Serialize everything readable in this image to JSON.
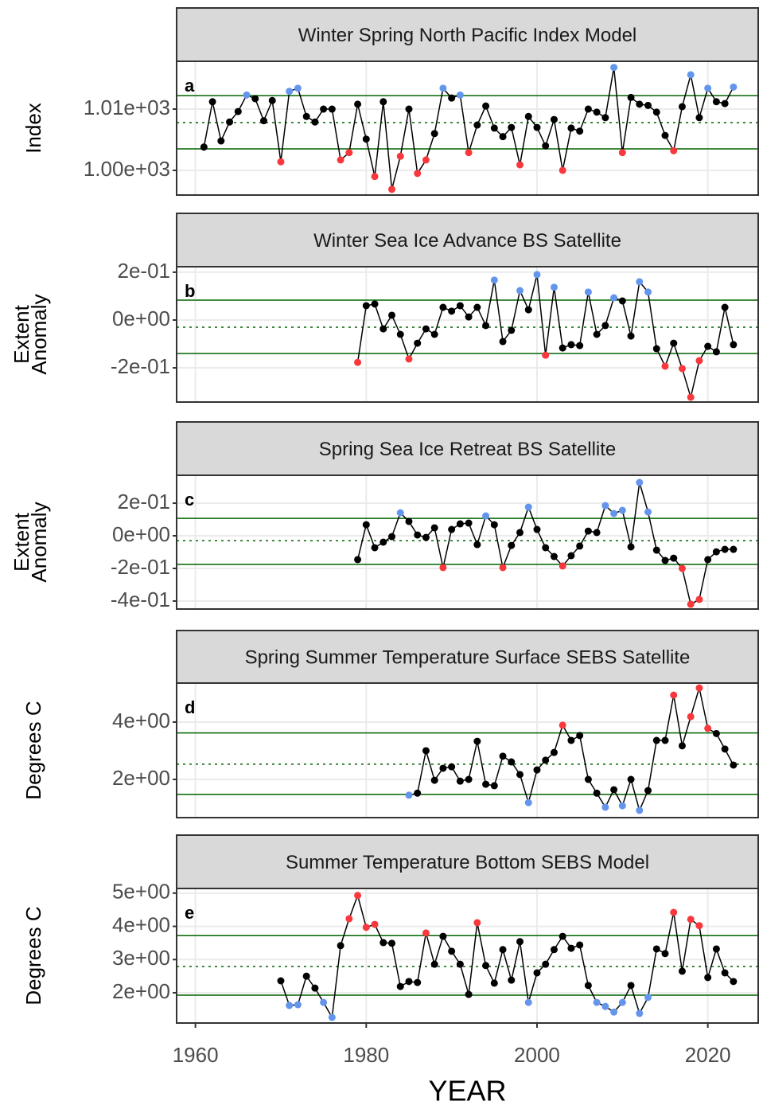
{
  "chart_data": [
    {
      "type": "line",
      "title": "Winter Spring North Pacific Index Model",
      "panel": "a",
      "ylabel": [
        "Index"
      ],
      "xlim": [
        1957.8,
        2025.9
      ],
      "xticks": [
        1960,
        1980,
        2000,
        2020
      ],
      "ylim": [
        995.97,
        1017.8
      ],
      "yticks": [
        {
          "value": 1000,
          "label": "1.00e+03"
        },
        {
          "value": 1010,
          "label": "1.01e+03"
        }
      ],
      "upper": 1012.2,
      "lower": 1003.5,
      "mean": 1007.8,
      "high_color": "#6495ed",
      "low_color": "#f8383c",
      "grid": true,
      "x": [
        1961,
        1962,
        1963,
        1964,
        1965,
        1966,
        1967,
        1968,
        1969,
        1970,
        1971,
        1972,
        1973,
        1974,
        1975,
        1976,
        1977,
        1978,
        1979,
        1980,
        1981,
        1982,
        1983,
        1984,
        1985,
        1986,
        1987,
        1988,
        1989,
        1990,
        1991,
        1992,
        1993,
        1994,
        1995,
        1996,
        1997,
        1998,
        1999,
        2000,
        2001,
        2002,
        2003,
        2004,
        2005,
        2006,
        2007,
        2008,
        2009,
        2010,
        2011,
        2012,
        2013,
        2014,
        2015,
        2016,
        2017,
        2018,
        2019,
        2020,
        2021,
        2022,
        2023
      ],
      "series": [
        {
          "color": "#000000",
          "values": [
            1003.8,
            1011.2,
            1004.8,
            1007.9,
            1009.6,
            1012.3,
            1011.7,
            1008.1,
            1011.4,
            1001.4,
            1012.9,
            1013.4,
            1008.8,
            1007.9,
            1010,
            1010,
            1001.7,
            1002.9,
            1010.8,
            1005.1,
            999,
            1011.2,
            996.9,
            1002.3,
            1010,
            999.5,
            1001.7,
            1006,
            1013.4,
            1011.8,
            1012.3,
            1002.9,
            1007.4,
            1010.5,
            1006.9,
            1005.5,
            1007,
            1000.9,
            1008.8,
            1007,
            1004,
            1008.3,
            1000,
            1006.9,
            1006.4,
            1010,
            1009.5,
            1008.6,
            1016.8,
            1002.9,
            1011.9,
            1010.8,
            1010.6,
            1009.5,
            1005.7,
            1003.2,
            1010.4,
            1015.6,
            1008.6,
            1013.4,
            1011.2,
            1010.9,
            1013.6
          ]
        }
      ]
    },
    {
      "type": "line",
      "title": "Winter Sea Ice Advance BS Satellite",
      "panel": "b",
      "ylabel": [
        "Extent",
        "Anomaly"
      ],
      "xlim": [
        1957.8,
        2025.9
      ],
      "xticks": [
        1960,
        1980,
        2000,
        2020
      ],
      "ylim": [
        -0.343,
        0.223
      ],
      "yticks": [
        {
          "value": -0.2,
          "label": "-2e-01"
        },
        {
          "value": 0,
          "label": "0e+00"
        },
        {
          "value": 0.2,
          "label": "2e-01"
        }
      ],
      "upper": 0.083,
      "lower": -0.14,
      "mean": -0.03,
      "high_color": "#6495ed",
      "low_color": "#f8383c",
      "grid": true,
      "x": [
        1979,
        1980,
        1981,
        1982,
        1983,
        1984,
        1985,
        1986,
        1987,
        1988,
        1989,
        1990,
        1991,
        1992,
        1993,
        1994,
        1995,
        1996,
        1997,
        1998,
        1999,
        2000,
        2001,
        2002,
        2003,
        2004,
        2005,
        2006,
        2007,
        2008,
        2009,
        2010,
        2011,
        2012,
        2013,
        2014,
        2015,
        2016,
        2017,
        2018,
        2019,
        2020,
        2021,
        2022,
        2023
      ],
      "series": [
        {
          "color": "#000000",
          "values": [
            -0.177,
            0.06,
            0.067,
            -0.037,
            0.02,
            -0.06,
            -0.163,
            -0.097,
            -0.037,
            -0.06,
            0.053,
            0.037,
            0.06,
            0.013,
            0.053,
            -0.023,
            0.167,
            -0.09,
            -0.043,
            0.123,
            0.043,
            0.19,
            -0.147,
            0.137,
            -0.117,
            -0.103,
            -0.107,
            0.117,
            -0.06,
            -0.023,
            0.093,
            0.08,
            -0.067,
            0.16,
            0.117,
            -0.12,
            -0.193,
            -0.097,
            -0.203,
            -0.323,
            -0.17,
            -0.11,
            -0.133,
            0.053,
            -0.103
          ]
        }
      ]
    },
    {
      "type": "line",
      "title": "Spring Sea Ice Retreat BS Satellite",
      "panel": "c",
      "ylabel": [
        "Extent",
        "Anomaly"
      ],
      "xlim": [
        1957.8,
        2025.9
      ],
      "xticks": [
        1960,
        1980,
        2000,
        2020
      ],
      "ylim": [
        -0.449,
        0.371
      ],
      "yticks": [
        {
          "value": -0.4,
          "label": "-4e-01"
        },
        {
          "value": -0.2,
          "label": "-2e-01"
        },
        {
          "value": 0,
          "label": "0e+00"
        },
        {
          "value": 0.2,
          "label": "2e-01"
        }
      ],
      "upper": 0.107,
      "lower": -0.175,
      "mean": -0.03,
      "high_color": "#6495ed",
      "low_color": "#f8383c",
      "grid": true,
      "x": [
        1979,
        1980,
        1981,
        1982,
        1983,
        1984,
        1985,
        1986,
        1987,
        1988,
        1989,
        1990,
        1991,
        1992,
        1993,
        1994,
        1995,
        1996,
        1997,
        1998,
        1999,
        2000,
        2001,
        2002,
        2003,
        2004,
        2005,
        2006,
        2007,
        2008,
        2009,
        2010,
        2011,
        2012,
        2013,
        2014,
        2015,
        2016,
        2017,
        2018,
        2019,
        2020,
        2021,
        2022,
        2023
      ],
      "series": [
        {
          "color": "#000000",
          "values": [
            -0.146,
            0.068,
            -0.073,
            -0.039,
            -0.005,
            0.141,
            0.088,
            0.005,
            -0.01,
            0.049,
            -0.195,
            0.039,
            0.073,
            0.078,
            -0.054,
            0.122,
            0.068,
            -0.195,
            -0.059,
            0.02,
            0.176,
            0.039,
            -0.073,
            -0.127,
            -0.185,
            -0.122,
            -0.063,
            0.029,
            0.02,
            0.185,
            0.137,
            0.156,
            -0.068,
            0.327,
            0.146,
            -0.088,
            -0.151,
            -0.137,
            -0.2,
            -0.42,
            -0.39,
            -0.146,
            -0.098,
            -0.083,
            -0.083
          ]
        }
      ]
    },
    {
      "type": "line",
      "title": "Spring Summer Temperature Surface SEBS Satellite",
      "panel": "d",
      "ylabel": [
        "Degrees C"
      ],
      "xlim": [
        1957.8,
        2025.9
      ],
      "xticks": [
        1960,
        1980,
        2000,
        2020
      ],
      "ylim": [
        0.667,
        5.36
      ],
      "yticks": [
        {
          "value": 2,
          "label": "2e+00"
        },
        {
          "value": 4,
          "label": "4e+00"
        }
      ],
      "upper": 3.62,
      "lower": 1.48,
      "mean": 2.53,
      "high_color": "#f8383c",
      "low_color": "#6495ed",
      "grid": true,
      "x": [
        1985,
        1986,
        1987,
        1988,
        1989,
        1990,
        1991,
        1992,
        1993,
        1994,
        1995,
        1996,
        1997,
        1998,
        1999,
        2000,
        2001,
        2002,
        2003,
        2004,
        2005,
        2006,
        2007,
        2008,
        2009,
        2010,
        2011,
        2012,
        2013,
        2014,
        2015,
        2016,
        2017,
        2018,
        2019,
        2020,
        2021,
        2022,
        2023
      ],
      "series": [
        {
          "color": "#000000",
          "values": [
            1.45,
            1.52,
            3.0,
            1.97,
            2.39,
            2.44,
            1.94,
            2.0,
            3.33,
            1.83,
            1.78,
            2.81,
            2.61,
            2.17,
            1.19,
            2.33,
            2.67,
            2.94,
            3.89,
            3.36,
            3.53,
            2.0,
            1.52,
            1.03,
            1.64,
            1.08,
            2.0,
            0.92,
            1.61,
            3.36,
            3.36,
            4.94,
            3.17,
            4.19,
            5.19,
            3.78,
            3.6,
            3.06,
            2.5
          ]
        }
      ]
    },
    {
      "type": "line",
      "title": "Summer Temperature Bottom SEBS Model",
      "panel": "e",
      "ylabel": [
        "Degrees C"
      ],
      "xlabel": "YEAR",
      "xlim": [
        1957.8,
        2025.9
      ],
      "xticks": [
        1960,
        1980,
        2000,
        2020
      ],
      "ylim": [
        1.09,
        5.14
      ],
      "yticks": [
        {
          "value": 2,
          "label": "2e+00"
        },
        {
          "value": 3,
          "label": "3e+00"
        },
        {
          "value": 4,
          "label": "4e+00"
        },
        {
          "value": 5,
          "label": "5e+00"
        }
      ],
      "upper": 3.72,
      "lower": 1.93,
      "mean": 2.79,
      "high_color": "#f8383c",
      "low_color": "#6495ed",
      "grid": true,
      "x": [
        1970,
        1971,
        1972,
        1973,
        1974,
        1975,
        1976,
        1977,
        1978,
        1979,
        1980,
        1981,
        1982,
        1983,
        1984,
        1985,
        1986,
        1987,
        1988,
        1989,
        1990,
        1991,
        1992,
        1993,
        1994,
        1995,
        1996,
        1997,
        1998,
        1999,
        2000,
        2001,
        2002,
        2003,
        2004,
        2005,
        2006,
        2007,
        2008,
        2009,
        2010,
        2011,
        2012,
        2013,
        2014,
        2015,
        2016,
        2017,
        2018,
        2019,
        2020,
        2021,
        2022,
        2023
      ],
      "series": [
        {
          "color": "#000000",
          "values": [
            2.36,
            1.62,
            1.64,
            2.5,
            2.14,
            1.71,
            1.26,
            3.42,
            4.23,
            4.93,
            3.97,
            4.06,
            3.51,
            3.49,
            2.19,
            2.34,
            2.31,
            3.8,
            2.86,
            3.7,
            3.25,
            2.86,
            1.95,
            4.11,
            2.82,
            2.29,
            3.3,
            2.38,
            3.54,
            1.71,
            2.6,
            2.86,
            3.3,
            3.7,
            3.34,
            3.44,
            2.22,
            1.71,
            1.59,
            1.42,
            1.71,
            2.22,
            1.38,
            1.86,
            3.32,
            3.18,
            4.42,
            2.65,
            4.21,
            4.02,
            2.46,
            3.32,
            2.6,
            2.34
          ]
        }
      ]
    }
  ]
}
